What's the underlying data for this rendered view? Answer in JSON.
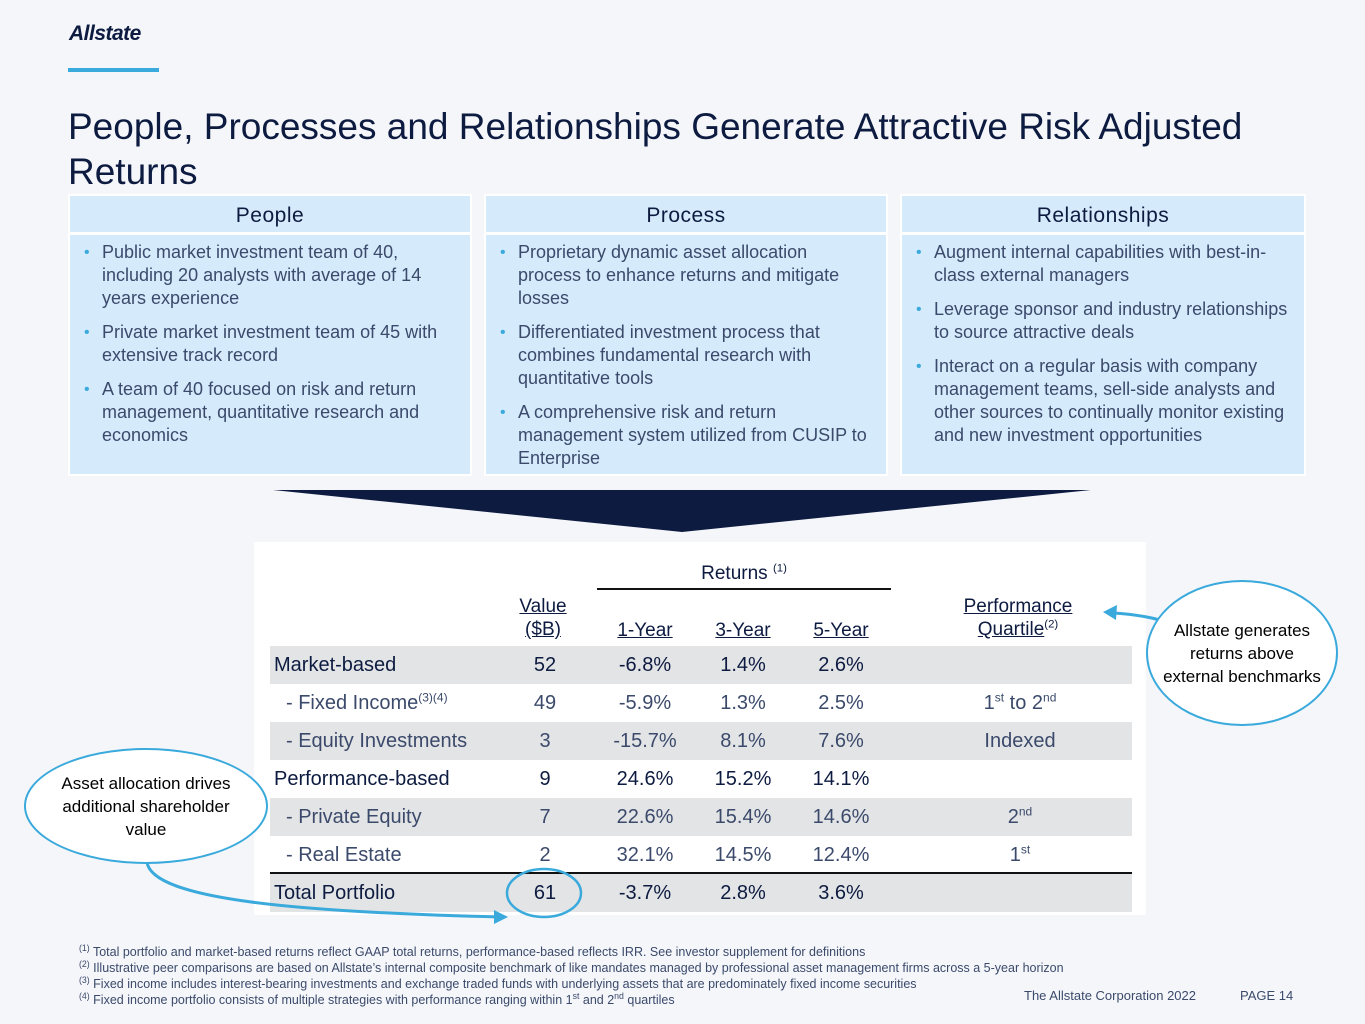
{
  "brand": {
    "logo_text": "Allstate",
    "accent": "#3aa9dc",
    "navy": "#0d1b40",
    "panel_bg": "#d5eafb"
  },
  "title": "People, Processes and Relationships Generate Attractive Risk Adjusted Returns",
  "columns": [
    {
      "heading": "People",
      "bullets": [
        "Public market investment team of 40, including 20 analysts with average of 14 years experience",
        "Private market investment team of 45 with extensive track record",
        "A team of 40 focused on risk and return management, quantitative research and economics"
      ]
    },
    {
      "heading": "Process",
      "bullets": [
        "Proprietary dynamic asset allocation process to enhance returns and mitigate losses",
        "Differentiated investment process that combines fundamental research with quantitative tools",
        "A comprehensive risk and return management system utilized from CUSIP to Enterprise"
      ]
    },
    {
      "heading": "Relationships",
      "bullets": [
        "Augment internal capabilities with best-in-class external managers",
        "Leverage sponsor and industry relationships to source attractive deals",
        "Interact on a regular basis with company management teams, sell-side analysts and other sources to continually monitor existing and new investment opportunities"
      ]
    }
  ],
  "table": {
    "returns_header": "Returns",
    "returns_sup": "(1)",
    "value_header_1": "Value",
    "value_header_2": "($B)",
    "y1_header": "1-Year",
    "y3_header": "3-Year",
    "y5_header": "5-Year",
    "perf_header_1": "Performance",
    "perf_header_2": "Quartile",
    "perf_sup": "(2)",
    "rows": [
      {
        "label": "Market-based",
        "value": "52",
        "y1": "-6.8%",
        "y3": "1.4%",
        "y5": "2.6%",
        "q": "",
        "q_sup": "",
        "q2": "",
        "q2_sup": "",
        "label_sup": ""
      },
      {
        "label": "- Fixed Income",
        "label_sup": "(3)(4)",
        "value": "49",
        "y1": "-5.9%",
        "y3": "1.3%",
        "y5": "2.5%",
        "q": "1",
        "q_sup": "st",
        "q2": " to 2",
        "q2_sup": "nd"
      },
      {
        "label": "- Equity Investments",
        "label_sup": "",
        "value": "3",
        "y1": "-15.7%",
        "y3": "8.1%",
        "y5": "7.6%",
        "q": "Indexed",
        "q_sup": "",
        "q2": "",
        "q2_sup": ""
      },
      {
        "label": "Performance-based",
        "label_sup": "",
        "value": "9",
        "y1": "24.6%",
        "y3": "15.2%",
        "y5": "14.1%",
        "q": "",
        "q_sup": "",
        "q2": "",
        "q2_sup": ""
      },
      {
        "label": "- Private Equity",
        "label_sup": "",
        "value": "7",
        "y1": "22.6%",
        "y3": "15.4%",
        "y5": "14.6%",
        "q": "2",
        "q_sup": "nd",
        "q2": "",
        "q2_sup": ""
      },
      {
        "label": "- Real Estate",
        "label_sup": "",
        "value": "2",
        "y1": "32.1%",
        "y3": "14.5%",
        "y5": "12.4%",
        "q": "1",
        "q_sup": "st",
        "q2": "",
        "q2_sup": ""
      },
      {
        "label": "Total Portfolio",
        "label_sup": "",
        "value": "61",
        "y1": "-3.7%",
        "y3": "2.8%",
        "y5": "3.6%",
        "q": "",
        "q_sup": "",
        "q2": "",
        "q2_sup": ""
      }
    ]
  },
  "callouts": {
    "left": "Asset allocation drives additional shareholder value",
    "right": "Allstate generates returns above external benchmarks"
  },
  "footnotes": [
    {
      "mark": "(1)",
      "text": " Total portfolio and market-based returns reflect GAAP total returns, performance-based reflects IRR. See investor supplement for definitions"
    },
    {
      "mark": "(2)",
      "text": " Illustrative peer comparisons are based on Allstate’s internal composite benchmark of like mandates managed by professional asset management firms across a 5-year horizon"
    },
    {
      "mark": "(3)",
      "text": " Fixed income includes interest-bearing investments and exchange traded funds with underlying assets that are predominately fixed income securities"
    },
    {
      "mark": "(4)",
      "text_a": " Fixed income portfolio consists of multiple strategies with performance ranging within 1",
      "sup_a": "st",
      "text_b": " and 2",
      "sup_b": "nd",
      "text_c": " quartiles"
    }
  ],
  "footer": {
    "corp": "The Allstate Corporation 2022",
    "page": "PAGE 14"
  }
}
